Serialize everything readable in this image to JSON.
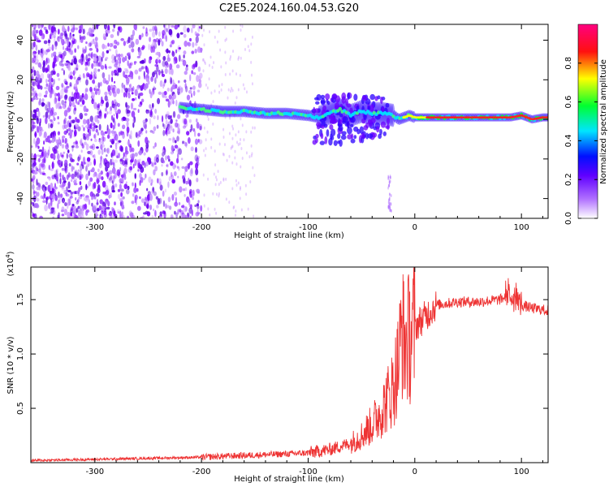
{
  "title": "C2E5.2024.160.04.53.G20",
  "chart_data": [
    {
      "type": "heatmap",
      "xlabel": "Height of straight line (km)",
      "ylabel": "Frequency (Hz)",
      "xlim": [
        -360,
        125
      ],
      "ylim": [
        -50,
        48
      ],
      "x_ticks": [
        -300,
        -200,
        -100,
        0,
        100
      ],
      "x_tick_labels": [
        "-300",
        "-200",
        "-100",
        "0",
        "100"
      ],
      "y_ticks": [
        -40,
        -20,
        0,
        20,
        40
      ],
      "y_tick_labels": [
        "-40",
        "-20",
        "0",
        "20",
        "40"
      ],
      "colorbar": {
        "label": "Normalized spectral amplitude",
        "range": [
          0,
          1
        ],
        "ticks": [
          0.0,
          0.2,
          0.4,
          0.6,
          0.8
        ],
        "tick_labels": [
          "0.0",
          "0.2",
          "0.4",
          "0.6",
          "0.8"
        ],
        "colormap": [
          "#ffffff",
          "#7a00ff",
          "#0000ff",
          "#00e5ff",
          "#00ff00",
          "#ffff00",
          "#ff0000",
          "#ff0080"
        ]
      },
      "signal_track": {
        "x": [
          -220,
          -200,
          -180,
          -160,
          -140,
          -120,
          -100,
          -90,
          -80,
          -70,
          -60,
          -50,
          -40,
          -30,
          -20,
          -15,
          -10,
          -5,
          0,
          20,
          40,
          60,
          80,
          90,
          100,
          110,
          120,
          125
        ],
        "y": [
          6,
          5,
          4,
          4,
          3,
          3,
          2,
          1,
          3,
          5,
          2,
          4,
          3,
          3,
          2,
          0,
          1,
          2,
          1,
          1,
          1,
          1,
          1,
          1,
          2,
          0,
          1,
          1
        ]
      },
      "noise_region_x": [
        -360,
        -200
      ]
    },
    {
      "type": "line",
      "xlabel": "Height of straight line (km)",
      "ylabel": "SNR (10 * v/v)",
      "y_exponent_label": "(x10",
      "y_exponent_power": "4",
      "y_exponent_close": ")",
      "xlim": [
        -360,
        125
      ],
      "ylim": [
        0,
        1.8
      ],
      "x_ticks": [
        -300,
        -200,
        -100,
        0,
        100
      ],
      "x_tick_labels": [
        "-300",
        "-200",
        "-100",
        "0",
        "100"
      ],
      "y_ticks": [
        0.5,
        1.0,
        1.5
      ],
      "y_tick_labels": [
        "0.5",
        "1.0",
        "1.5"
      ],
      "line_color": "#ee3333",
      "series": [
        {
          "name": "SNR",
          "x": [
            -360,
            -300,
            -250,
            -200,
            -150,
            -120,
            -100,
            -80,
            -60,
            -50,
            -40,
            -30,
            -20,
            -15,
            -12,
            -10,
            -5,
            0,
            10,
            20,
            40,
            60,
            80,
            90,
            95,
            100,
            110,
            125
          ],
          "y": [
            0.02,
            0.03,
            0.04,
            0.05,
            0.07,
            0.08,
            0.09,
            0.12,
            0.18,
            0.25,
            0.35,
            0.5,
            0.7,
            0.95,
            1.25,
            1.1,
            1.15,
            1.25,
            1.35,
            1.45,
            1.48,
            1.48,
            1.5,
            1.55,
            1.52,
            1.45,
            1.42,
            1.4
          ]
        }
      ]
    }
  ]
}
